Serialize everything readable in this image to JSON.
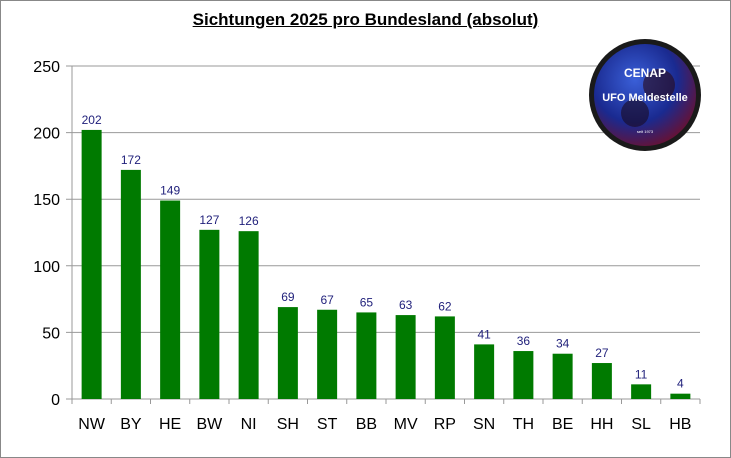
{
  "chart_data": {
    "type": "bar",
    "title": "Sichtungen 2025 pro Bundesland (absolut)",
    "categories": [
      "NW",
      "BY",
      "HE",
      "BW",
      "NI",
      "SH",
      "ST",
      "BB",
      "MV",
      "RP",
      "SN",
      "TH",
      "BE",
      "HH",
      "SL",
      "HB"
    ],
    "values": [
      202,
      172,
      149,
      127,
      126,
      69,
      67,
      65,
      63,
      62,
      41,
      36,
      34,
      27,
      11,
      4
    ],
    "ylim": [
      0,
      250
    ],
    "yticks": [
      0,
      50,
      100,
      150,
      200,
      250
    ],
    "grid": true,
    "data_labels": true,
    "legend": "none",
    "colors": {
      "bar": "#007a00",
      "data_label": "#1f1f7a",
      "grid": "#999999"
    }
  },
  "logo": {
    "line1": "CENAP",
    "line2": "UFO Meldestelle",
    "line3": "seit 1973"
  }
}
